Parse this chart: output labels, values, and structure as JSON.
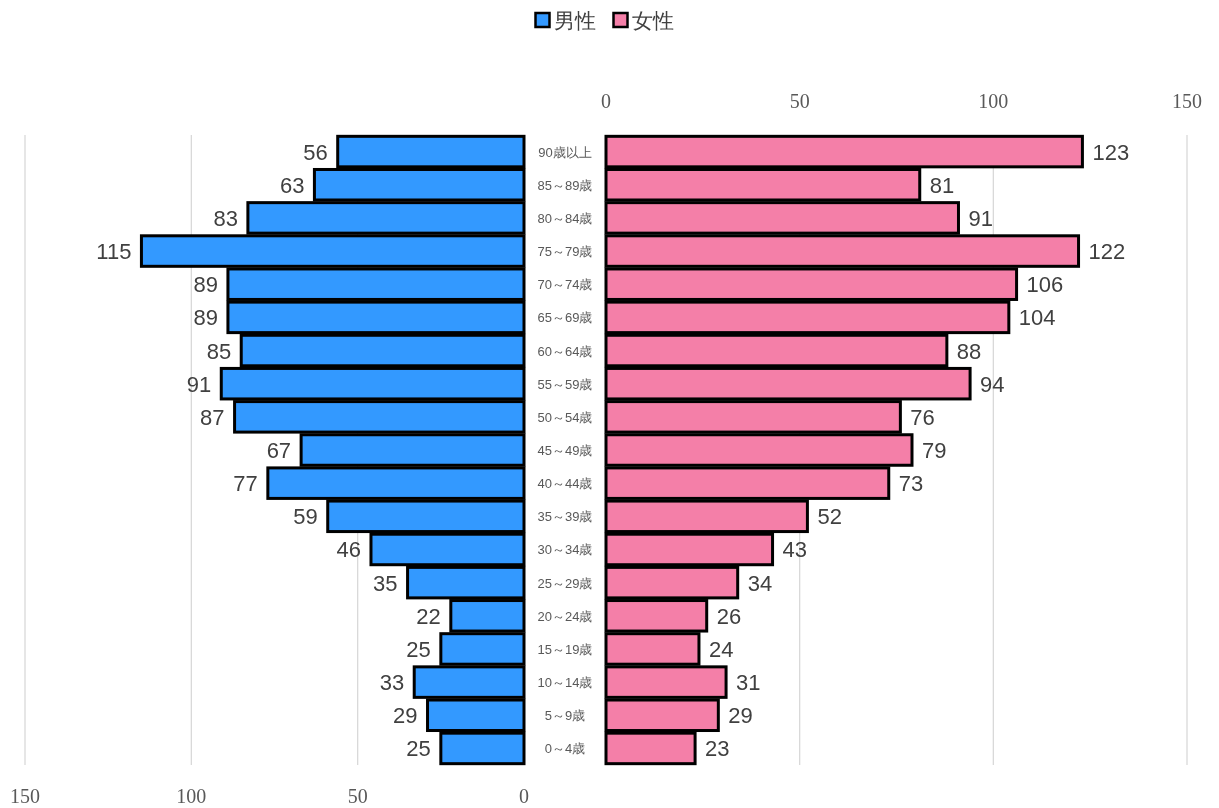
{
  "chart_data": [
    {
      "type": "bar",
      "orientation": "horizontal",
      "categories": [
        "90歳以上",
        "85～89歳",
        "80～84歳",
        "75～79歳",
        "70～74歳",
        "65～69歳",
        "60～64歳",
        "55～59歳",
        "50～54歳",
        "45～49歳",
        "40～44歳",
        "35～39歳",
        "30～34歳",
        "25～29歳",
        "20～24歳",
        "15～19歳",
        "10～14歳",
        "5～9歳",
        "0～4歳"
      ],
      "series": [
        {
          "name": "男性",
          "color": "#3399ff",
          "values": [
            56,
            63,
            83,
            115,
            89,
            89,
            85,
            91,
            87,
            67,
            77,
            59,
            46,
            35,
            22,
            25,
            33,
            29,
            25
          ]
        }
      ],
      "xlim": [
        150,
        0
      ],
      "xticks": [
        150,
        100,
        50,
        0
      ],
      "grid": "x",
      "data_labels": true,
      "legend": "top"
    },
    {
      "type": "bar",
      "orientation": "horizontal",
      "series": [
        {
          "name": "女性",
          "color": "#f47fa8",
          "values": [
            123,
            81,
            91,
            122,
            106,
            104,
            88,
            94,
            76,
            79,
            73,
            52,
            43,
            34,
            26,
            24,
            31,
            29,
            23
          ]
        }
      ],
      "xlim": [
        0,
        150
      ],
      "xticks": [
        0,
        50,
        100,
        150
      ],
      "grid": "x",
      "data_labels": true,
      "legend": "top"
    }
  ]
}
